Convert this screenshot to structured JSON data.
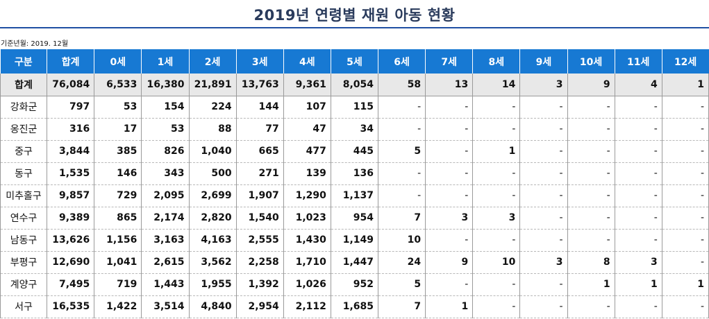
{
  "title": "2019년 연령별 재원 아동 현황",
  "basis": "기준년월: 2019. 12월",
  "headers": [
    "구분",
    "합계",
    "0세",
    "1세",
    "2세",
    "3세",
    "4세",
    "5세",
    "6세",
    "7세",
    "8세",
    "9세",
    "10세",
    "11세",
    "12세"
  ],
  "total": [
    "합계",
    "76,084",
    "6,533",
    "16,380",
    "21,891",
    "13,763",
    "9,361",
    "8,054",
    "58",
    "13",
    "14",
    "3",
    "9",
    "4",
    "1"
  ],
  "rows": [
    [
      "강화군",
      "797",
      "53",
      "154",
      "224",
      "144",
      "107",
      "115",
      "-",
      "-",
      "-",
      "-",
      "-",
      "-",
      "-"
    ],
    [
      "옹진군",
      "316",
      "17",
      "53",
      "88",
      "77",
      "47",
      "34",
      "-",
      "-",
      "-",
      "-",
      "-",
      "-",
      "-"
    ],
    [
      "중구",
      "3,844",
      "385",
      "826",
      "1,040",
      "665",
      "477",
      "445",
      "5",
      "-",
      "1",
      "-",
      "-",
      "-",
      "-"
    ],
    [
      "동구",
      "1,535",
      "146",
      "343",
      "500",
      "271",
      "139",
      "136",
      "-",
      "-",
      "-",
      "-",
      "-",
      "-",
      "-"
    ],
    [
      "미추홀구",
      "9,857",
      "729",
      "2,095",
      "2,699",
      "1,907",
      "1,290",
      "1,137",
      "-",
      "-",
      "-",
      "-",
      "-",
      "-",
      "-"
    ],
    [
      "연수구",
      "9,389",
      "865",
      "2,174",
      "2,820",
      "1,540",
      "1,023",
      "954",
      "7",
      "3",
      "3",
      "-",
      "-",
      "-",
      "-"
    ],
    [
      "남동구",
      "13,626",
      "1,156",
      "3,163",
      "4,163",
      "2,555",
      "1,430",
      "1,149",
      "10",
      "-",
      "-",
      "-",
      "-",
      "-",
      "-"
    ],
    [
      "부평구",
      "12,690",
      "1,041",
      "2,615",
      "3,562",
      "2,258",
      "1,710",
      "1,447",
      "24",
      "9",
      "10",
      "3",
      "8",
      "3",
      "-"
    ],
    [
      "계양구",
      "7,495",
      "719",
      "1,443",
      "1,955",
      "1,392",
      "1,026",
      "952",
      "5",
      "-",
      "-",
      "-",
      "1",
      "1",
      "1"
    ],
    [
      "서구",
      "16,535",
      "1,422",
      "3,514",
      "4,840",
      "2,954",
      "2,112",
      "1,685",
      "7",
      "1",
      "-",
      "-",
      "-",
      "-",
      "-"
    ]
  ]
}
